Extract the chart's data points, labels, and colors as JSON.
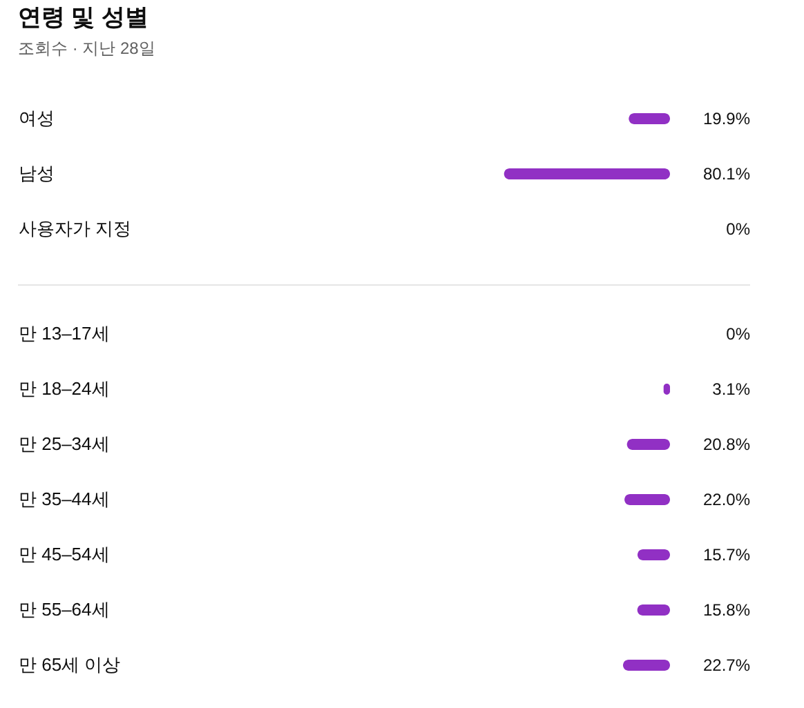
{
  "chart_data": [
    {
      "type": "bar",
      "orientation": "horizontal",
      "title": "연령 및 성별",
      "subtitle": "조회수 · 지난 28일",
      "tick_labels": "y",
      "color": "#9130c4",
      "categories": [
        "여성",
        "남성",
        "사용자가 지정"
      ],
      "values": [
        19.9,
        80.1,
        0
      ],
      "value_labels": [
        "19.9%",
        "80.1%",
        "0%"
      ]
    },
    {
      "type": "bar",
      "orientation": "horizontal",
      "tick_labels": "y",
      "color": "#9130c4",
      "categories": [
        "만 13–17세",
        "만 18–24세",
        "만 25–34세",
        "만 35–44세",
        "만 45–54세",
        "만 55–64세",
        "만 65세 이상"
      ],
      "values": [
        0,
        3.1,
        20.8,
        22.0,
        15.7,
        15.8,
        22.7
      ],
      "value_labels": [
        "0%",
        "3.1%",
        "20.8%",
        "22.0%",
        "15.7%",
        "15.8%",
        "22.7%"
      ]
    }
  ]
}
